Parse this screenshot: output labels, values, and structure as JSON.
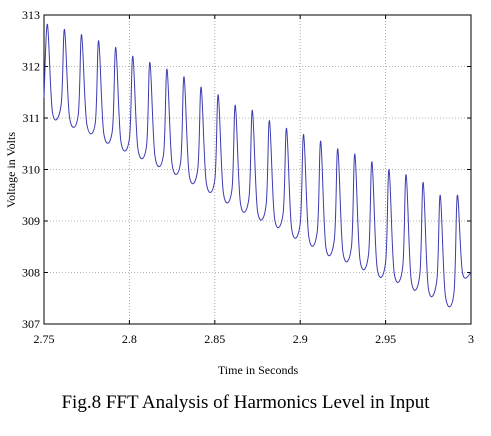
{
  "chart_data": {
    "type": "line",
    "title": "",
    "xlabel": "Time in Seconds",
    "ylabel": "Voltage in Volts",
    "xlim": [
      2.75,
      3.0
    ],
    "ylim": [
      307,
      313
    ],
    "x_ticks": [
      "2.75",
      "2.8",
      "2.85",
      "2.9",
      "2.95",
      "3"
    ],
    "y_ticks": [
      "307",
      "308",
      "309",
      "310",
      "311",
      "312",
      "313"
    ],
    "grid": true,
    "line_color": "#3b3bb0",
    "series": [
      {
        "x": [
          2.75,
          2.752,
          2.755,
          2.76,
          2.762,
          2.765,
          2.77,
          2.772,
          2.775,
          2.78,
          2.782,
          2.785,
          2.79,
          2.792,
          2.795,
          2.8,
          2.802,
          2.805,
          2.81,
          2.812,
          2.815,
          2.82,
          2.822,
          2.825,
          2.83,
          2.832,
          2.835,
          2.84,
          2.842,
          2.845,
          2.85,
          2.852,
          2.855,
          2.86,
          2.862,
          2.865,
          2.87,
          2.872,
          2.875,
          2.88,
          2.882,
          2.885,
          2.89,
          2.892,
          2.895,
          2.9,
          2.902,
          2.905,
          2.91,
          2.912,
          2.915,
          2.92,
          2.922,
          2.925,
          2.93,
          2.932,
          2.935,
          2.94,
          2.942,
          2.945,
          2.95,
          2.952,
          2.955,
          2.96,
          2.962,
          2.965,
          2.97,
          2.972,
          2.975,
          2.98,
          2.982,
          2.985,
          2.99,
          2.992,
          2.995,
          3.0
        ],
        "y": [
          311.4,
          312.82,
          311.1,
          311.25,
          312.72,
          311.0,
          311.05,
          312.62,
          310.9,
          310.9,
          312.5,
          310.7,
          310.75,
          312.37,
          310.55,
          310.6,
          312.2,
          310.4,
          310.45,
          312.08,
          310.25,
          310.3,
          311.95,
          310.1,
          310.15,
          311.8,
          309.9,
          310.0,
          311.6,
          309.75,
          309.8,
          311.45,
          309.55,
          309.6,
          311.25,
          309.35,
          309.45,
          311.15,
          309.2,
          309.3,
          310.95,
          309.05,
          309.15,
          310.8,
          308.85,
          308.95,
          310.68,
          308.7,
          308.8,
          310.55,
          308.5,
          308.65,
          310.4,
          308.4,
          308.5,
          310.3,
          308.25,
          308.35,
          310.15,
          308.1,
          308.2,
          310.0,
          308.0,
          308.1,
          309.9,
          307.85,
          307.95,
          309.75,
          307.7,
          307.85,
          309.5,
          307.55,
          307.6,
          309.5,
          308.0,
          308.0
        ]
      }
    ]
  },
  "caption": "Fig.8 FFT Analysis of Harmonics Level in Input"
}
